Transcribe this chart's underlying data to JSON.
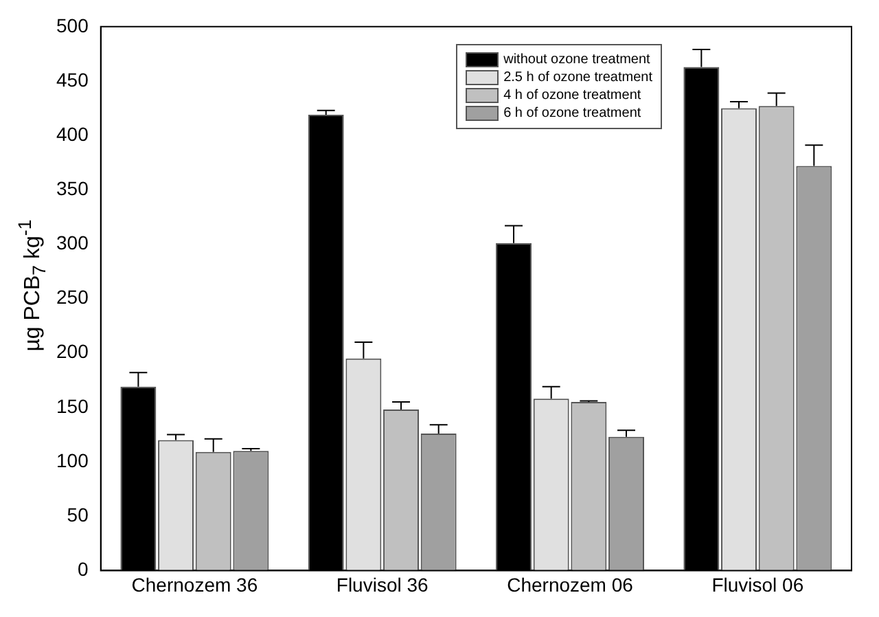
{
  "chart_data": {
    "type": "bar",
    "ylabel": "µg PCB$_{7}$ kg$^{-1}$",
    "categories": [
      "Chernozem 36",
      "Fluvisol 36",
      "Chernozem 06",
      "Fluvisol 06"
    ],
    "series": [
      {
        "name": "without ozone treatment",
        "color": "#000000",
        "values": [
          169,
          419,
          301,
          463
        ],
        "errors": [
          [
            169,
            182
          ],
          [
            419,
            423
          ],
          [
            301,
            317
          ],
          [
            463,
            479
          ]
        ]
      },
      {
        "name": "2.5 h of ozone treatment",
        "color": "#e0e0e0",
        "values": [
          120,
          195,
          158,
          425
        ],
        "errors": [
          [
            120,
            125
          ],
          [
            195,
            210
          ],
          [
            158,
            169
          ],
          [
            425,
            431
          ]
        ]
      },
      {
        "name": "4 h of ozone treatment",
        "color": "#c0c0c0",
        "values": [
          109,
          148,
          155,
          427
        ],
        "errors": [
          [
            109,
            121
          ],
          [
            148,
            155
          ],
          [
            155,
            156
          ],
          [
            427,
            439
          ]
        ]
      },
      {
        "name": "6 h of ozone treatment",
        "color": "#a0a0a0",
        "values": [
          110,
          126,
          123,
          372
        ],
        "errors": [
          [
            110,
            112
          ],
          [
            126,
            134
          ],
          [
            123,
            129
          ],
          [
            372,
            391
          ]
        ]
      }
    ],
    "ylim": [
      0,
      500
    ],
    "yticks": [
      0,
      50,
      100,
      150,
      200,
      250,
      300,
      350,
      400,
      450,
      500
    ],
    "grid": false,
    "legend": "top right"
  }
}
